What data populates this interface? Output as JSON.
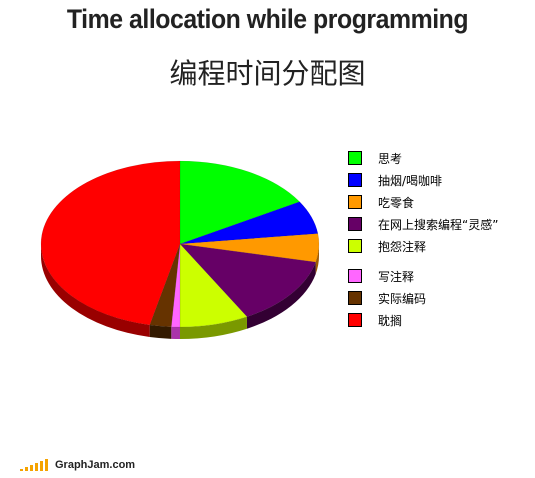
{
  "chart_data": {
    "type": "pie",
    "title": "Time allocation while programming",
    "subtitle": "编程时间分配图",
    "slices": [
      {
        "label": "思考",
        "value": 16.5,
        "color": "#00ff00",
        "side": "#008800"
      },
      {
        "label": "抽烟/喝咖啡",
        "value": 6.5,
        "color": "#0000ff",
        "side": "#000088"
      },
      {
        "label": "吃零食",
        "value": 5.5,
        "color": "#ff9900",
        "side": "#a05a00"
      },
      {
        "label": "在网上搜索编程“灵感”",
        "value": 13.5,
        "color": "#660066",
        "side": "#330033"
      },
      {
        "label": "抱怨注释",
        "value": 8.0,
        "color": "#ccff00",
        "side": "#7a9900"
      },
      {
        "label": "写注释",
        "value": 1.0,
        "color": "#ff66ff",
        "side": "#aa33aa"
      },
      {
        "label": "实际编码",
        "value": 2.5,
        "color": "#663300",
        "side": "#331a00"
      },
      {
        "label": "耽搁",
        "value": 46.5,
        "color": "#ff0000",
        "side": "#990000"
      }
    ],
    "legend_position": "right"
  },
  "footer": {
    "brand": "GraphJam.com",
    "brand_color": "#f5a300"
  }
}
